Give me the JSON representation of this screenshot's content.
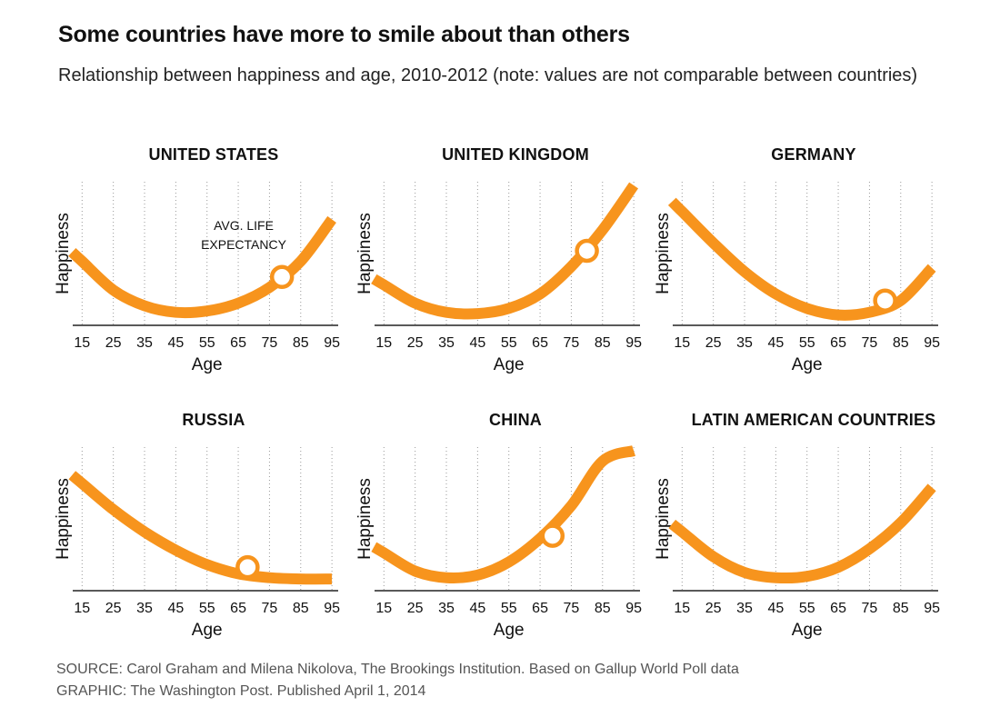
{
  "title": "Some countries have more to smile about than others",
  "subtitle": "Relationship between happiness and age, 2010-2012 (note: values are not comparable between countries)",
  "annotation": {
    "line1": "AVG. LIFE",
    "line2": "EXPECTANCY"
  },
  "source_line": "SOURCE: Carol Graham and Milena Nikolova, The Brookings Institution. Based on Gallup World Poll data",
  "graphic_line": "GRAPHIC: The Washington Post. Published April 1, 2014",
  "colors": {
    "curve": "#f7941d",
    "axis": "#222222",
    "grid": "#999999",
    "marker_fill": "#ffffff"
  },
  "chart_data": [
    {
      "type": "line",
      "title": "UNITED STATES",
      "xlabel": "Age",
      "ylabel": "Happiness",
      "x": [
        15,
        25,
        35,
        45,
        55,
        65,
        75,
        85,
        95
      ],
      "xlim": [
        12,
        97
      ],
      "ylim": [
        0,
        1
      ],
      "values": [
        0.42,
        0.2,
        0.08,
        0.03,
        0.04,
        0.1,
        0.22,
        0.42,
        0.74
      ],
      "marker": {
        "x": 79,
        "y": 0.3,
        "label": "AVG. LIFE EXPECTANCY"
      }
    },
    {
      "type": "line",
      "title": "UNITED KINGDOM",
      "xlabel": "Age",
      "ylabel": "Happiness",
      "x": [
        15,
        25,
        35,
        45,
        55,
        65,
        75,
        85,
        95
      ],
      "xlim": [
        12,
        97
      ],
      "ylim": [
        0,
        1
      ],
      "values": [
        0.24,
        0.1,
        0.03,
        0.02,
        0.06,
        0.17,
        0.38,
        0.66,
        1.0
      ],
      "marker": {
        "x": 80,
        "y": 0.5
      }
    },
    {
      "type": "line",
      "title": "GERMANY",
      "xlabel": "Age",
      "ylabel": "Happiness",
      "x": [
        15,
        25,
        35,
        45,
        55,
        65,
        75,
        85,
        95
      ],
      "xlim": [
        12,
        97
      ],
      "ylim": [
        0,
        1
      ],
      "values": [
        0.8,
        0.56,
        0.34,
        0.17,
        0.06,
        0.01,
        0.03,
        0.12,
        0.37
      ],
      "marker": {
        "x": 80,
        "y": 0.12
      }
    },
    {
      "type": "line",
      "title": "RUSSIA",
      "xlabel": "Age",
      "ylabel": "Happiness",
      "x": [
        15,
        25,
        35,
        45,
        55,
        65,
        75,
        85,
        95
      ],
      "xlim": [
        12,
        97
      ],
      "ylim": [
        0,
        1
      ],
      "values": [
        0.75,
        0.55,
        0.38,
        0.24,
        0.13,
        0.06,
        0.03,
        0.02,
        0.02
      ],
      "marker": {
        "x": 68,
        "y": 0.11
      }
    },
    {
      "type": "line",
      "title": "CHINA",
      "xlabel": "Age",
      "ylabel": "Happiness",
      "x": [
        15,
        25,
        35,
        45,
        55,
        65,
        75,
        85,
        95
      ],
      "xlim": [
        12,
        97
      ],
      "ylim": [
        0,
        1
      ],
      "values": [
        0.22,
        0.08,
        0.03,
        0.05,
        0.15,
        0.33,
        0.58,
        0.92,
        1.0
      ],
      "marker": {
        "x": 69,
        "y": 0.35
      }
    },
    {
      "type": "line",
      "title": "LATIN AMERICAN COUNTRIES",
      "xlabel": "Age",
      "ylabel": "Happiness",
      "x": [
        15,
        25,
        35,
        45,
        55,
        65,
        75,
        85,
        95
      ],
      "xlim": [
        12,
        97
      ],
      "ylim": [
        0,
        1
      ],
      "values": [
        0.38,
        0.19,
        0.07,
        0.03,
        0.04,
        0.11,
        0.25,
        0.45,
        0.72
      ]
    }
  ]
}
